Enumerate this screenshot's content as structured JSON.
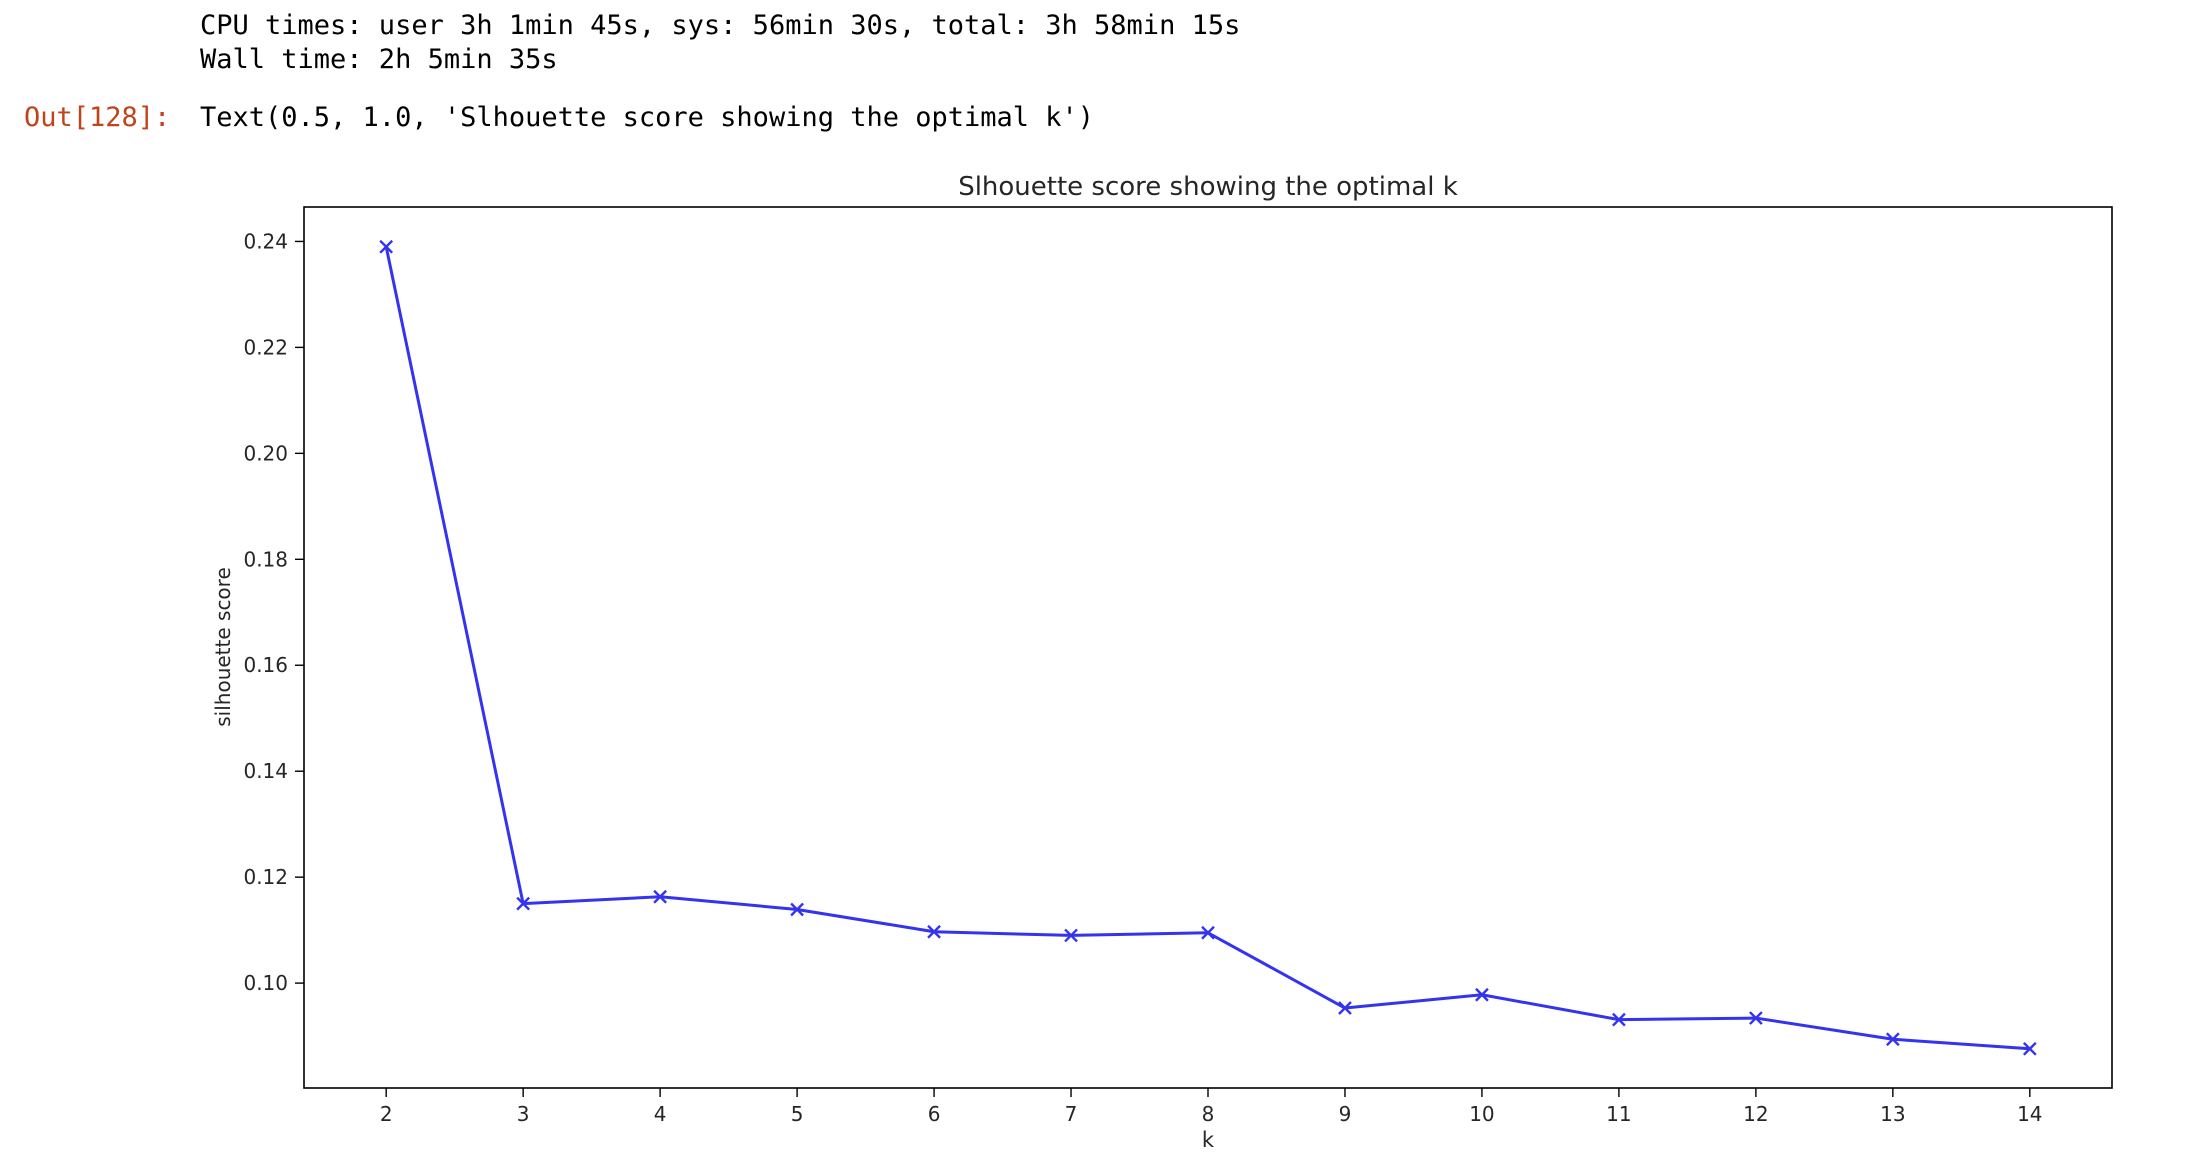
{
  "cell": {
    "stdout_lines": [
      "CPU times: user 3h 1min 45s, sys: 56min 30s, total: 3h 58min 15s",
      "Wall time: 2h 5min 35s"
    ],
    "out_prompt": "Out[128]:",
    "out_text": "Text(0.5, 1.0, 'Slhouette score showing the optimal k')"
  },
  "chart_data": {
    "type": "line",
    "title": "Slhouette score showing the optimal k",
    "xlabel": "k",
    "ylabel": "silhouette score",
    "x": [
      2,
      3,
      4,
      5,
      6,
      7,
      8,
      9,
      10,
      11,
      12,
      13,
      14
    ],
    "series": [
      {
        "values": [
          0.239,
          0.115,
          0.1163,
          0.1139,
          0.1097,
          0.109,
          0.1095,
          0.0953,
          0.0978,
          0.0931,
          0.0934,
          0.0894,
          0.0876
        ],
        "color": "#3333f0",
        "marker": "x"
      }
    ],
    "xticks": [
      "2",
      "3",
      "4",
      "5",
      "6",
      "7",
      "8",
      "9",
      "10",
      "11",
      "12",
      "13",
      "14"
    ],
    "yticks": [
      "0.10",
      "0.12",
      "0.14",
      "0.16",
      "0.18",
      "0.20",
      "0.22",
      "0.24"
    ],
    "ytick_values": [
      0.1,
      0.12,
      0.14,
      0.16,
      0.18,
      0.2,
      0.22,
      0.24
    ],
    "xlim": [
      1.4,
      14.6
    ],
    "ylim": [
      0.0802,
      0.2465
    ],
    "grid": false,
    "legend": "none"
  }
}
